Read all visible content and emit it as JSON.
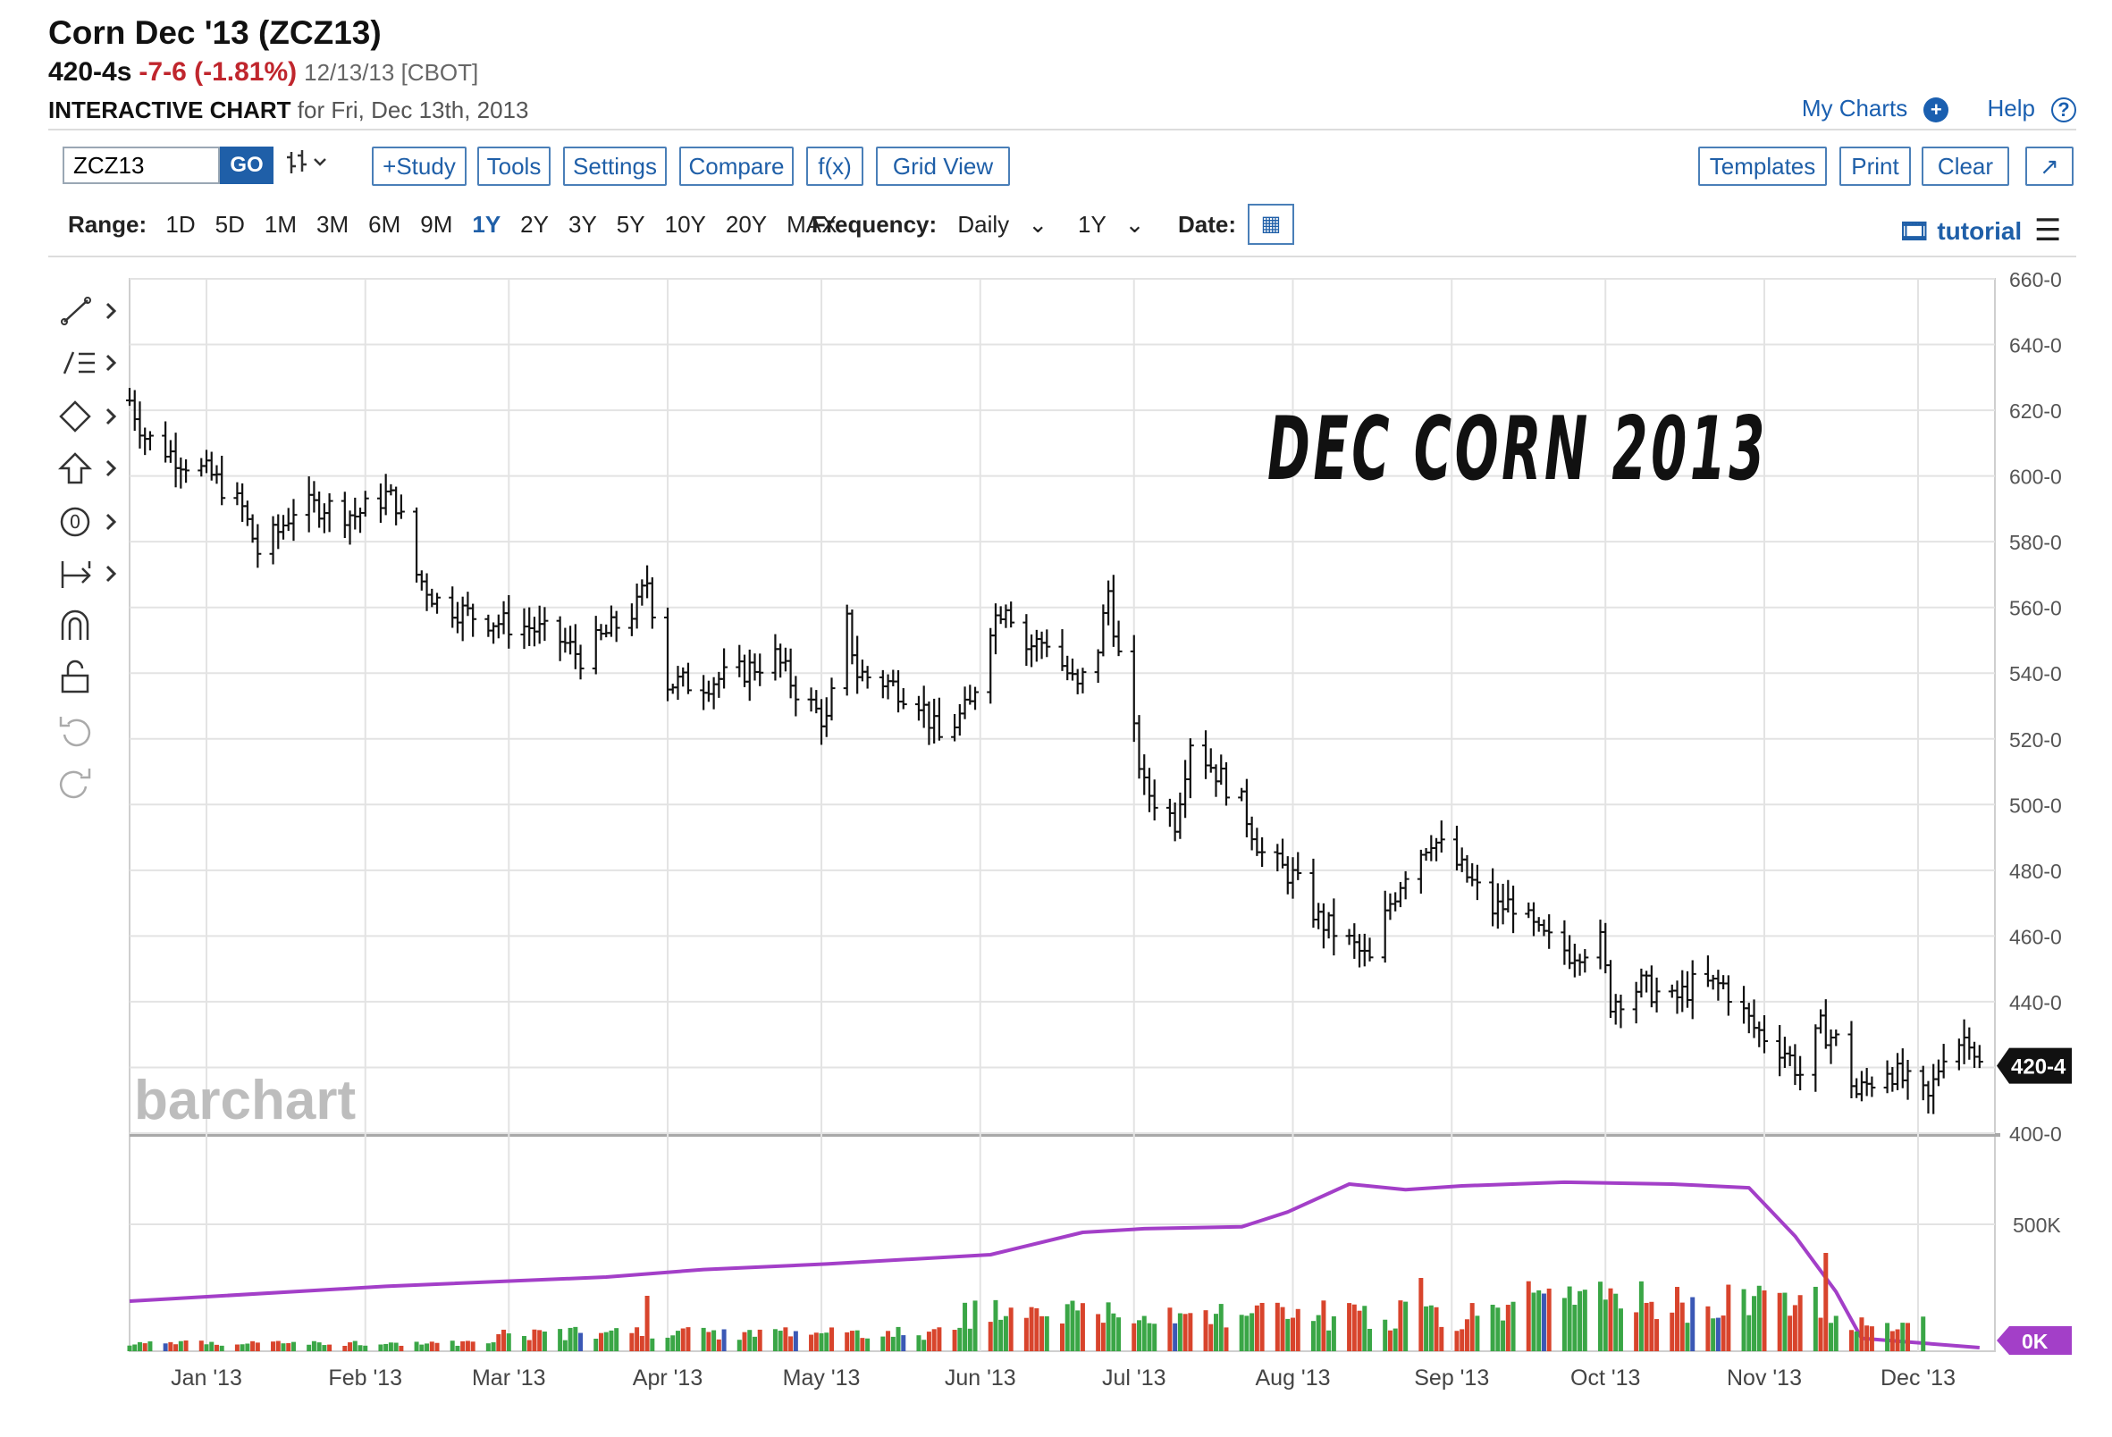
{
  "header": {
    "title": "Corn Dec '13 (ZCZ13)",
    "last": "420-4s",
    "change": "-7-6 (-1.81%)",
    "date_exchange": "12/13/13 [CBOT]",
    "subtitle_bold": "INTERACTIVE CHART",
    "subtitle_rest": "for Fri, Dec 13th, 2013"
  },
  "toplinks": {
    "my_charts": "My Charts",
    "my_charts_icon": "+",
    "help": "Help",
    "help_icon": "?"
  },
  "toolbar": {
    "symbol_value": "ZCZ13",
    "go": "GO",
    "bar_type_icon": "ohlc-bars-icon",
    "study": "+Study",
    "tools": "Tools",
    "settings": "Settings",
    "compare": "Compare",
    "fx": "f(x)",
    "grid_view": "Grid View",
    "templates": "Templates",
    "print": "Print",
    "clear": "Clear",
    "expand": "↗"
  },
  "range_bar": {
    "range_label": "Range:",
    "ranges": [
      "1D",
      "5D",
      "1M",
      "3M",
      "6M",
      "9M",
      "1Y",
      "2Y",
      "3Y",
      "5Y",
      "10Y",
      "20Y",
      "MAX"
    ],
    "selected": "1Y",
    "frequency_label": "Frequency:",
    "frequency_value": "Daily",
    "period_value": "1Y",
    "date_label": "Date:",
    "tutorial": "tutorial"
  },
  "left_tools": [
    "line-draw-icon",
    "fib-levels-icon",
    "shapes-icon",
    "arrow-up-icon",
    "text-label-icon",
    "measure-icon",
    "magnet-icon",
    "unlock-icon",
    "undo-icon",
    "redo-icon"
  ],
  "annotation": "DEC CORN 2013",
  "watermark": "barchart",
  "colors": {
    "up_volume": "#3aa646",
    "down_volume": "#d8442c",
    "neutral_volume": "#3b58b5",
    "open_interest": "#a33fc8",
    "accent": "#1f5fa8"
  },
  "chart_data": {
    "type": "bar",
    "subtype": "ohlc",
    "x_tick_labels": [
      "Jan '13",
      "Feb '13",
      "Mar '13",
      "Apr '13",
      "May '13",
      "Jun '13",
      "Jul '13",
      "Aug '13",
      "Sep '13",
      "Oct '13",
      "Nov '13",
      "Dec '13"
    ],
    "price_axis": {
      "ticks": [
        "660-0",
        "640-0",
        "620-0",
        "600-0",
        "580-0",
        "560-0",
        "540-0",
        "520-0",
        "500-0",
        "480-0",
        "460-0",
        "440-0",
        "400-0"
      ],
      "ylim": [
        400,
        660
      ]
    },
    "volume_axis": {
      "ticks": [
        "500K",
        "0K"
      ]
    },
    "last_price_label": "420-4",
    "price_points": [
      [
        "2012-12-17",
        623
      ],
      [
        "2012-12-20",
        612
      ],
      [
        "2012-12-27",
        605
      ],
      [
        "2013-01-02",
        600
      ],
      [
        "2013-01-08",
        590
      ],
      [
        "2013-01-11",
        577
      ],
      [
        "2013-01-15",
        583
      ],
      [
        "2013-01-18",
        590
      ],
      [
        "2013-01-24",
        591
      ],
      [
        "2013-01-30",
        588
      ],
      [
        "2013-02-05",
        594
      ],
      [
        "2013-02-07",
        592
      ],
      [
        "2013-02-11",
        570
      ],
      [
        "2013-02-15",
        562
      ],
      [
        "2013-02-21",
        558
      ],
      [
        "2013-02-28",
        555
      ],
      [
        "2013-03-05",
        554
      ],
      [
        "2013-03-11",
        550
      ],
      [
        "2013-03-15",
        545
      ],
      [
        "2013-03-20",
        552
      ],
      [
        "2013-03-26",
        560
      ],
      [
        "2013-03-28",
        568
      ],
      [
        "2013-04-01",
        537
      ],
      [
        "2013-04-08",
        537
      ],
      [
        "2013-04-15",
        540
      ],
      [
        "2013-04-22",
        545
      ],
      [
        "2013-04-26",
        535
      ],
      [
        "2013-05-02",
        525
      ],
      [
        "2013-05-06",
        555
      ],
      [
        "2013-05-08",
        540
      ],
      [
        "2013-05-14",
        537
      ],
      [
        "2013-05-20",
        532
      ],
      [
        "2013-05-24",
        520
      ],
      [
        "2013-05-30",
        530
      ],
      [
        "2013-06-03",
        555
      ],
      [
        "2013-06-06",
        562
      ],
      [
        "2013-06-10",
        548
      ],
      [
        "2013-06-14",
        550
      ],
      [
        "2013-06-20",
        535
      ],
      [
        "2013-06-24",
        548
      ],
      [
        "2013-06-26",
        565
      ],
      [
        "2013-06-28",
        545
      ],
      [
        "2013-07-03",
        505
      ],
      [
        "2013-07-09",
        495
      ],
      [
        "2013-07-12",
        520
      ],
      [
        "2013-07-17",
        510
      ],
      [
        "2013-07-22",
        500
      ],
      [
        "2013-07-26",
        485
      ],
      [
        "2013-08-01",
        478
      ],
      [
        "2013-08-06",
        465
      ],
      [
        "2013-08-12",
        458
      ],
      [
        "2013-08-16",
        452
      ],
      [
        "2013-08-20",
        470
      ],
      [
        "2013-08-23",
        480
      ],
      [
        "2013-08-28",
        490
      ],
      [
        "2013-09-03",
        480
      ],
      [
        "2013-09-09",
        468
      ],
      [
        "2013-09-13",
        470
      ],
      [
        "2013-09-18",
        460
      ],
      [
        "2013-09-24",
        455
      ],
      [
        "2013-09-30",
        458
      ],
      [
        "2013-10-02",
        440
      ],
      [
        "2013-10-08",
        445
      ],
      [
        "2013-10-14",
        440
      ],
      [
        "2013-10-18",
        445
      ],
      [
        "2013-10-24",
        445
      ],
      [
        "2013-10-30",
        432
      ],
      [
        "2013-11-05",
        425
      ],
      [
        "2013-11-08",
        418
      ],
      [
        "2013-11-12",
        432
      ],
      [
        "2013-11-15",
        428
      ],
      [
        "2013-11-19",
        412
      ],
      [
        "2013-11-25",
        420
      ],
      [
        "2013-11-29",
        415
      ],
      [
        "2013-12-03",
        410
      ],
      [
        "2013-12-06",
        425
      ],
      [
        "2013-12-11",
        430
      ],
      [
        "2013-12-13",
        420.5
      ]
    ],
    "open_interest_points": [
      [
        "2012-12-17",
        0.25
      ],
      [
        "2013-02-05",
        0.33
      ],
      [
        "2013-03-20",
        0.38
      ],
      [
        "2013-04-08",
        0.42
      ],
      [
        "2013-05-02",
        0.45
      ],
      [
        "2013-06-03",
        0.5
      ],
      [
        "2013-06-21",
        0.62
      ],
      [
        "2013-07-03",
        0.64
      ],
      [
        "2013-07-22",
        0.65
      ],
      [
        "2013-07-31",
        0.73
      ],
      [
        "2013-08-12",
        0.88
      ],
      [
        "2013-08-23",
        0.85
      ],
      [
        "2013-09-03",
        0.87
      ],
      [
        "2013-09-23",
        0.89
      ],
      [
        "2013-10-14",
        0.88
      ],
      [
        "2013-10-29",
        0.86
      ],
      [
        "2013-11-07",
        0.6
      ],
      [
        "2013-11-15",
        0.3
      ],
      [
        "2013-11-20",
        0.05
      ],
      [
        "2013-12-13",
        0.0
      ]
    ]
  }
}
